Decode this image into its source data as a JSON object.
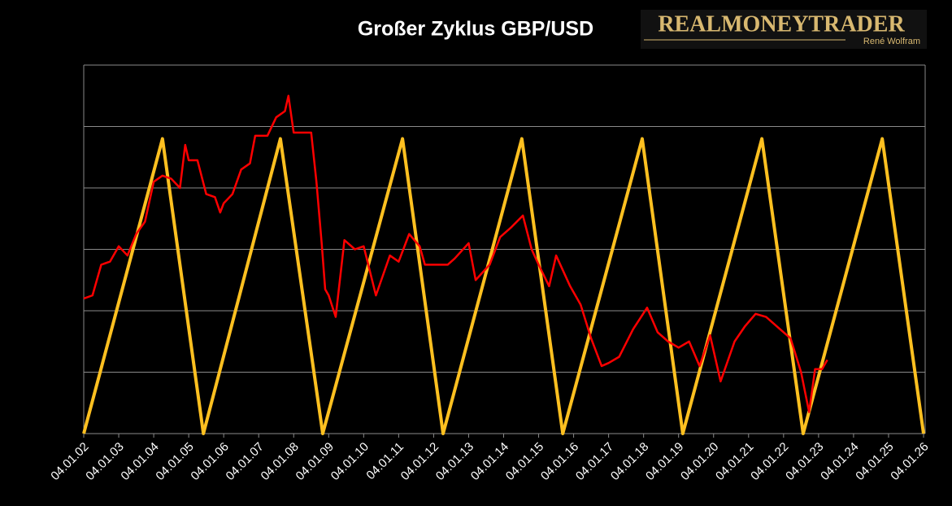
{
  "logo": {
    "name": "REALMONEYTRADER",
    "subtitle": "René Wolfram"
  },
  "chart_data": {
    "type": "line",
    "title": "Großer Zyklus GBP/USD",
    "xlim": [
      2002,
      2026
    ],
    "xticks": [
      {
        "value": 2002,
        "label": "04.01.02"
      },
      {
        "value": 2003,
        "label": "04.01.03"
      },
      {
        "value": 2004,
        "label": "04.01.04"
      },
      {
        "value": 2005,
        "label": "04.01.05"
      },
      {
        "value": 2006,
        "label": "04.01.06"
      },
      {
        "value": 2007,
        "label": "04.01.07"
      },
      {
        "value": 2008,
        "label": "04.01.08"
      },
      {
        "value": 2009,
        "label": "04.01.09"
      },
      {
        "value": 2010,
        "label": "04.01.10"
      },
      {
        "value": 2011,
        "label": "04.01.11"
      },
      {
        "value": 2012,
        "label": "04.01.12"
      },
      {
        "value": 2013,
        "label": "04.01.13"
      },
      {
        "value": 2014,
        "label": "04.01.14"
      },
      {
        "value": 2015,
        "label": "04.01.15"
      },
      {
        "value": 2016,
        "label": "04.01.16"
      },
      {
        "value": 2017,
        "label": "04.01.17"
      },
      {
        "value": 2018,
        "label": "04.01.18"
      },
      {
        "value": 2019,
        "label": "04.01.19"
      },
      {
        "value": 2020,
        "label": "04.01.20"
      },
      {
        "value": 2021,
        "label": "04.01.21"
      },
      {
        "value": 2022,
        "label": "04.01.22"
      },
      {
        "value": 2023,
        "label": "04.01.23"
      },
      {
        "value": 2024,
        "label": "04.01.24"
      },
      {
        "value": 2025,
        "label": "04.01.25"
      },
      {
        "value": 2026,
        "label": "04.01.26"
      }
    ],
    "ylim": [
      1.0,
      2.2
    ],
    "yticks": [
      1.0,
      1.2,
      1.4,
      1.6,
      1.8,
      2.0,
      2.2
    ],
    "ytick_labels": false,
    "grid": true,
    "series": [
      {
        "color": "#ffc020",
        "x": [
          2002,
          2004.25,
          2005.42,
          2007.62,
          2008.83,
          2011.11,
          2012.27,
          2014.52,
          2015.69,
          2017.96,
          2019.12,
          2021.38,
          2022.56,
          2024.82,
          2026
        ],
        "values": [
          1.0,
          1.96,
          1.0,
          1.96,
          1.0,
          1.96,
          1.0,
          1.96,
          1.0,
          1.96,
          1.0,
          1.96,
          1.0,
          1.96,
          1.0
        ]
      },
      {
        "color": "#ff0000",
        "x": [
          2002.0,
          2002.25,
          2002.5,
          2002.75,
          2003.0,
          2003.25,
          2003.5,
          2003.75,
          2004.0,
          2004.25,
          2004.5,
          2004.75,
          2004.9,
          2005.0,
          2005.25,
          2005.5,
          2005.75,
          2005.9,
          2006.0,
          2006.25,
          2006.5,
          2006.75,
          2006.9,
          2007.25,
          2007.5,
          2007.75,
          2007.85,
          2008.0,
          2008.25,
          2008.5,
          2008.65,
          2008.8,
          2008.9,
          2009.0,
          2009.2,
          2009.45,
          2009.75,
          2010.0,
          2010.35,
          2010.75,
          2011.0,
          2011.3,
          2011.6,
          2011.75,
          2012.0,
          2012.4,
          2012.6,
          2013.0,
          2013.2,
          2013.6,
          2013.9,
          2014.2,
          2014.55,
          2014.8,
          2015.0,
          2015.3,
          2015.5,
          2015.9,
          2016.2,
          2016.5,
          2016.8,
          2017.0,
          2017.3,
          2017.7,
          2018.1,
          2018.4,
          2018.7,
          2019.0,
          2019.3,
          2019.6,
          2019.9,
          2020.2,
          2020.6,
          2020.9,
          2021.2,
          2021.5,
          2021.9,
          2022.2,
          2022.5,
          2022.73,
          2022.9,
          2023.1,
          2023.25
        ],
        "values": [
          1.44,
          1.45,
          1.55,
          1.56,
          1.61,
          1.58,
          1.65,
          1.69,
          1.82,
          1.84,
          1.83,
          1.8,
          1.94,
          1.89,
          1.89,
          1.78,
          1.77,
          1.72,
          1.75,
          1.78,
          1.86,
          1.88,
          1.97,
          1.97,
          2.03,
          2.05,
          2.1,
          1.98,
          1.98,
          1.98,
          1.82,
          1.62,
          1.47,
          1.45,
          1.38,
          1.63,
          1.6,
          1.61,
          1.45,
          1.58,
          1.56,
          1.65,
          1.61,
          1.55,
          1.55,
          1.55,
          1.57,
          1.62,
          1.5,
          1.55,
          1.64,
          1.67,
          1.71,
          1.6,
          1.55,
          1.48,
          1.58,
          1.48,
          1.42,
          1.31,
          1.22,
          1.23,
          1.25,
          1.34,
          1.41,
          1.33,
          1.3,
          1.28,
          1.3,
          1.22,
          1.32,
          1.17,
          1.3,
          1.35,
          1.39,
          1.38,
          1.34,
          1.31,
          1.2,
          1.07,
          1.21,
          1.21,
          1.24
        ]
      }
    ]
  }
}
